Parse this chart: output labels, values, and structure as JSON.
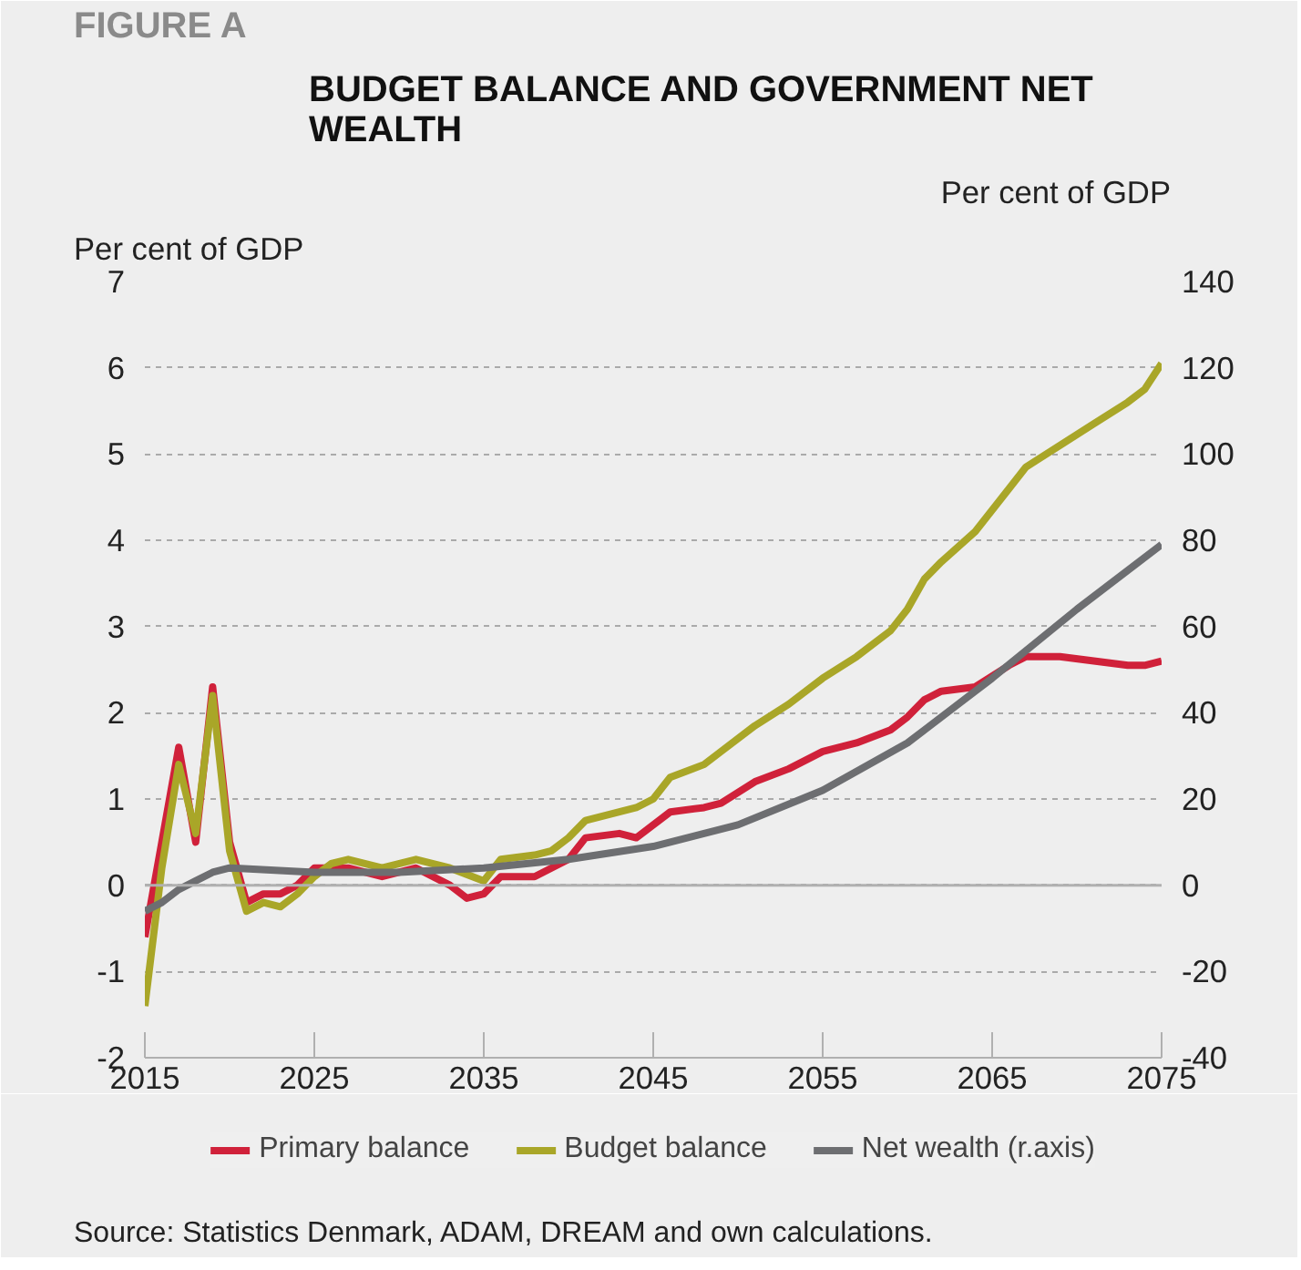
{
  "chart_data": {
    "type": "line",
    "subtitle": "FIGURE A",
    "title": "BUDGET BALANCE AND GOVERNMENT NET WEALTH",
    "ylabel": "Per cent of GDP",
    "y2label": "Per cent of GDP",
    "annotations": [
      "Source: Statistics Denmark, ADAM, DREAM and own calculations."
    ],
    "xlim": [
      2015,
      2075
    ],
    "xticks": [
      2015,
      2025,
      2035,
      2045,
      2055,
      2065,
      2075
    ],
    "ylim": [
      -2,
      7
    ],
    "yticks": [
      -2,
      -1,
      0,
      1,
      2,
      3,
      4,
      5,
      6,
      7
    ],
    "y2lim": [
      -40,
      140
    ],
    "y2ticks": [
      -40,
      -20,
      0,
      20,
      40,
      60,
      80,
      100,
      120,
      140
    ],
    "grid": "y",
    "legend": "bottom",
    "line_style": "solid",
    "ref_lines": [
      {
        "axis": "y",
        "value": 0,
        "color": "#b0b0b0"
      }
    ],
    "series": [
      {
        "name": "Primary balance",
        "color": "#d0213a",
        "x": [
          2015,
          2016,
          2017,
          2018,
          2019,
          2020,
          2021,
          2022,
          2023,
          2024,
          2025,
          2027,
          2029,
          2031,
          2033,
          2034,
          2035,
          2036,
          2038,
          2039,
          2040,
          2041,
          2043,
          2044,
          2046,
          2048,
          2049,
          2051,
          2053,
          2055,
          2057,
          2059,
          2060,
          2061,
          2062,
          2064,
          2066,
          2067,
          2069,
          2071,
          2073,
          2074,
          2075
        ],
        "values": [
          -0.6,
          0.5,
          1.6,
          0.5,
          2.3,
          0.5,
          -0.2,
          -0.1,
          -0.1,
          0.0,
          0.2,
          0.2,
          0.1,
          0.2,
          0.0,
          -0.15,
          -0.1,
          0.1,
          0.1,
          0.2,
          0.3,
          0.55,
          0.6,
          0.55,
          0.85,
          0.9,
          0.95,
          1.2,
          1.35,
          1.55,
          1.65,
          1.8,
          1.95,
          2.15,
          2.25,
          2.3,
          2.55,
          2.65,
          2.65,
          2.6,
          2.55,
          2.55,
          2.6
        ]
      },
      {
        "name": "Budget balance",
        "color": "#a9a628",
        "x": [
          2015,
          2016,
          2017,
          2018,
          2019,
          2020,
          2021,
          2022,
          2023,
          2024,
          2025,
          2026,
          2027,
          2029,
          2031,
          2033,
          2035,
          2036,
          2038,
          2039,
          2040,
          2041,
          2043,
          2044,
          2045,
          2046,
          2048,
          2049,
          2051,
          2053,
          2055,
          2057,
          2059,
          2060,
          2061,
          2062,
          2064,
          2066,
          2067,
          2069,
          2071,
          2073,
          2074,
          2075
        ],
        "values": [
          -1.4,
          0.2,
          1.4,
          0.6,
          2.2,
          0.4,
          -0.3,
          -0.2,
          -0.25,
          -0.1,
          0.1,
          0.25,
          0.3,
          0.2,
          0.3,
          0.2,
          0.05,
          0.3,
          0.35,
          0.4,
          0.55,
          0.75,
          0.85,
          0.9,
          1.0,
          1.25,
          1.4,
          1.55,
          1.85,
          2.1,
          2.4,
          2.65,
          2.95,
          3.2,
          3.55,
          3.75,
          4.1,
          4.6,
          4.85,
          5.1,
          5.35,
          5.6,
          5.75,
          6.05
        ]
      },
      {
        "name": "Net wealth (r.axis)",
        "color": "#6d6e71",
        "axis": "y2",
        "x": [
          2015,
          2016,
          2017,
          2018,
          2019,
          2020,
          2025,
          2030,
          2035,
          2040,
          2045,
          2050,
          2055,
          2060,
          2065,
          2070,
          2075
        ],
        "values": [
          -6,
          -4,
          -1,
          1,
          3,
          4,
          3,
          3,
          4,
          6,
          9,
          14,
          22,
          33,
          48,
          64,
          79
        ]
      }
    ]
  }
}
